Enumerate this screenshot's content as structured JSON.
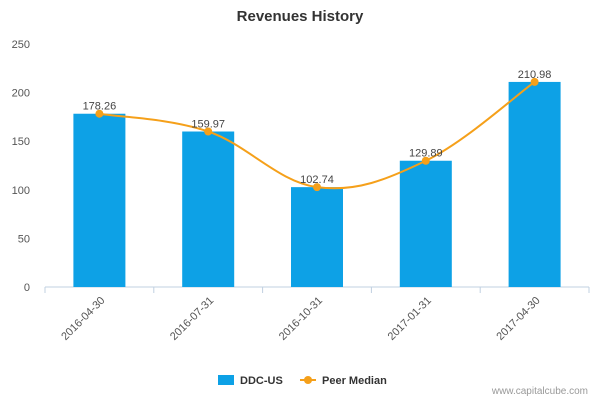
{
  "chart_data": {
    "type": "bar",
    "title": "Revenues History",
    "categories": [
      "2016-04-30",
      "2016-07-31",
      "2016-10-31",
      "2017-01-31",
      "2017-04-30"
    ],
    "series": [
      {
        "name": "DDC-US",
        "type": "bar",
        "values": [
          178.26,
          159.97,
          102.74,
          129.89,
          210.98
        ],
        "color": "#0da1e6"
      },
      {
        "name": "Peer Median",
        "type": "line",
        "values": [
          178.26,
          159.97,
          102.74,
          129.89,
          210.98
        ],
        "color": "#f5a01a"
      }
    ],
    "data_labels": [
      "178.26",
      "159.97",
      "102.74",
      "129.89",
      "210.98"
    ],
    "yticks": [
      "0",
      "50",
      "100",
      "150",
      "200",
      "250"
    ],
    "ylim": [
      0,
      250
    ],
    "grid": false,
    "legend_position": "bottom-center"
  },
  "credit": "www.capitalcube.com"
}
